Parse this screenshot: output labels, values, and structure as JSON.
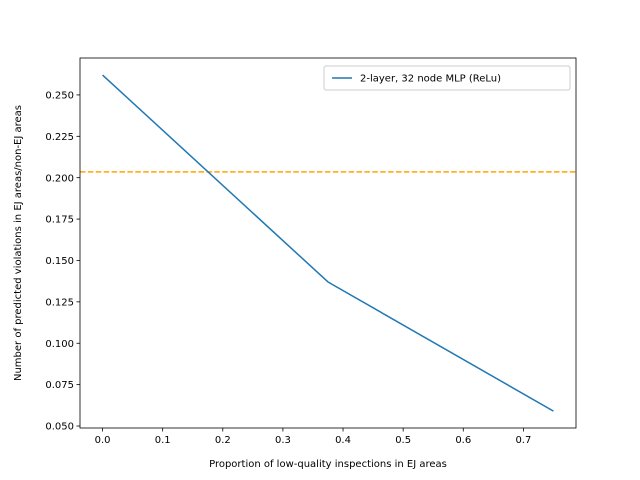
{
  "chart_data": {
    "type": "line",
    "xlabel": "Proportion of low-quality inspections in EJ areas",
    "ylabel": "Number of predicted violations in EJ areas/non-EJ areas",
    "xlim": [
      -0.0375,
      0.7875
    ],
    "ylim": [
      0.0488,
      0.2723
    ],
    "xticks": [
      0.0,
      0.1,
      0.2,
      0.3,
      0.4,
      0.5,
      0.6,
      0.7
    ],
    "xtick_labels": [
      "0.0",
      "0.1",
      "0.2",
      "0.3",
      "0.4",
      "0.5",
      "0.6",
      "0.7"
    ],
    "yticks": [
      0.05,
      0.075,
      0.1,
      0.125,
      0.15,
      0.175,
      0.2,
      0.225,
      0.25
    ],
    "ytick_labels": [
      "0.050",
      "0.075",
      "0.100",
      "0.125",
      "0.150",
      "0.175",
      "0.200",
      "0.225",
      "0.250"
    ],
    "grid": false,
    "legend_position": "top-right",
    "series": [
      {
        "name": "2-layer, 32 node MLP (ReLu)",
        "color": "#1f77b4",
        "style": "solid",
        "x": [
          0.0,
          0.375,
          0.75
        ],
        "y": [
          0.262,
          0.137,
          0.059
        ]
      }
    ],
    "reference_lines": [
      {
        "orientation": "horizontal",
        "y": 0.2035,
        "color": "#ffa500",
        "style": "dashed"
      }
    ]
  }
}
